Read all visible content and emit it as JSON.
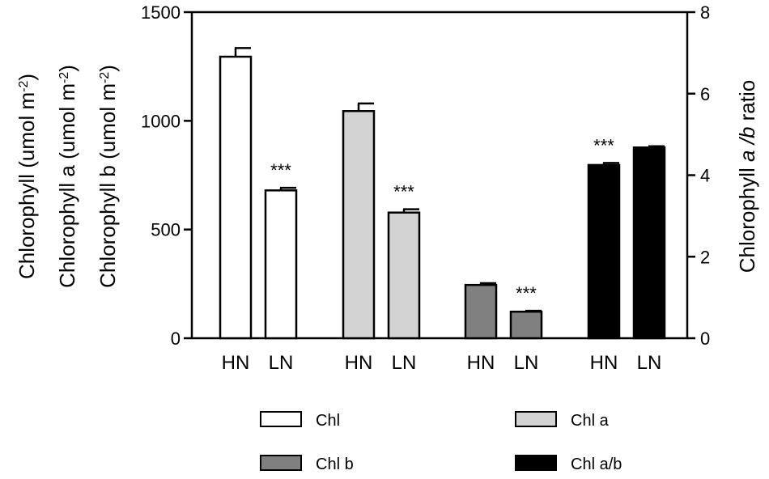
{
  "chart_data": {
    "type": "bar",
    "left_axis": {
      "title_lines": [
        {
          "parts": [
            {
              "t": "Chlorophyll (umol m"
            },
            {
              "t": "-2",
              "sup": true
            },
            {
              "t": ")"
            }
          ]
        },
        {
          "parts": [
            {
              "t": "Chlorophyll a (umol m"
            },
            {
              "t": "-2",
              "sup": true
            },
            {
              "t": ")"
            }
          ]
        },
        {
          "parts": [
            {
              "t": "Chlorophyll b (umol m"
            },
            {
              "t": "-2",
              "sup": true
            },
            {
              "t": ")"
            }
          ]
        }
      ],
      "ylim": [
        0,
        1500
      ],
      "ticks": [
        0,
        500,
        1000,
        1500
      ]
    },
    "right_axis": {
      "title_parts": [
        {
          "t": "Chlorophyll "
        },
        {
          "t": "a /b",
          "italic": true
        },
        {
          "t": " ratio"
        }
      ],
      "ylim": [
        0,
        8
      ],
      "ticks": [
        0,
        2,
        4,
        6,
        8
      ]
    },
    "groups": [
      {
        "name": "Chl",
        "axis": "left",
        "color": "#ffffff",
        "bars": [
          {
            "label": "HN",
            "value": 1295,
            "error": 40,
            "sig": ""
          },
          {
            "label": "LN",
            "value": 680,
            "error": 12,
            "sig": "***"
          }
        ]
      },
      {
        "name": "Chl a",
        "axis": "left",
        "color": "#d3d3d3",
        "bars": [
          {
            "label": "HN",
            "value": 1045,
            "error": 35,
            "sig": ""
          },
          {
            "label": "LN",
            "value": 578,
            "error": 15,
            "sig": "***"
          }
        ]
      },
      {
        "name": "Chl b",
        "axis": "left",
        "color": "#808080",
        "bars": [
          {
            "label": "HN",
            "value": 245,
            "error": 8,
            "sig": ""
          },
          {
            "label": "LN",
            "value": 122,
            "error": 4,
            "sig": "***"
          }
        ]
      },
      {
        "name": "Chl a/b",
        "axis": "right",
        "color": "#000000",
        "bars": [
          {
            "label": "HN",
            "value": 4.25,
            "error": 0.05,
            "sig": "***"
          },
          {
            "label": "LN",
            "value": 4.68,
            "error": 0.03,
            "sig": ""
          }
        ]
      }
    ],
    "legend": [
      "Chl",
      "Chl a",
      "Chl b",
      "Chl a/b"
    ],
    "legend_position": "bottom"
  }
}
